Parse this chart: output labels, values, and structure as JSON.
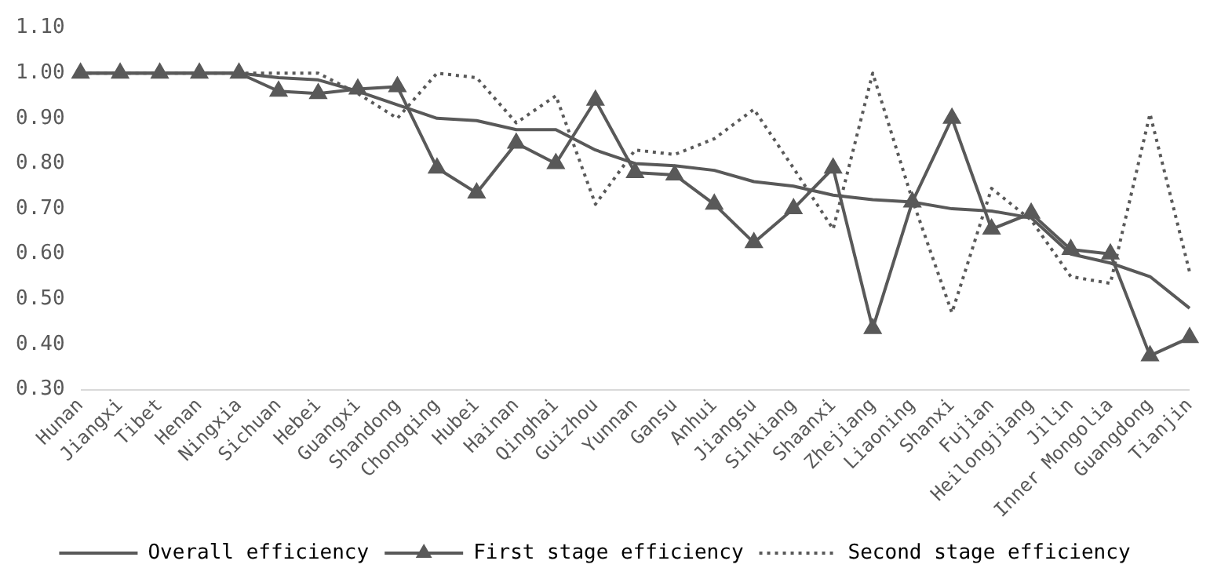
{
  "chart_data": {
    "type": "line",
    "categories": [
      "Hunan",
      "Jiangxi",
      "Tibet",
      "Henan",
      "Ningxia",
      "Sichuan",
      "Hebei",
      "Guangxi",
      "Shandong",
      "Chongqing",
      "Hubei",
      "Hainan",
      "Qinghai",
      "Guizhou",
      "Yunnan",
      "Gansu",
      "Anhui",
      "Jiangsu",
      "Sinkiang",
      "Shaanxi",
      "Zhejiang",
      "Liaoning",
      "Shanxi",
      "Fujian",
      "Heilongjiang",
      "Jilin",
      "Inner Mongolia",
      "Guangdong",
      "Tianjin"
    ],
    "series": [
      {
        "name": "Overall efficiency",
        "color": "#595959",
        "marker": "none",
        "line_style": "solid",
        "values": [
          1,
          1,
          1,
          1,
          1,
          0.99,
          0.985,
          0.96,
          0.93,
          0.9,
          0.895,
          0.875,
          0.875,
          0.83,
          0.8,
          0.795,
          0.785,
          0.76,
          0.75,
          0.73,
          0.72,
          0.715,
          0.7,
          0.695,
          0.68,
          0.6,
          0.58,
          0.55,
          0.48
        ]
      },
      {
        "name": "First stage efficiency",
        "color": "#595959",
        "marker": "triangle",
        "line_style": "solid",
        "values": [
          1,
          1,
          1,
          1,
          1,
          0.96,
          0.955,
          0.965,
          0.97,
          0.79,
          0.735,
          0.845,
          0.8,
          0.94,
          0.78,
          0.775,
          0.71,
          0.625,
          0.7,
          0.79,
          0.435,
          0.715,
          0.9,
          0.655,
          0.69,
          0.61,
          0.6,
          0.375,
          0.415
        ]
      },
      {
        "name": "Second stage efficiency",
        "color": "#595959",
        "marker": "none",
        "line_style": "dotted",
        "values": [
          1,
          1,
          1,
          1,
          1,
          1,
          1,
          0.955,
          0.9,
          1,
          0.99,
          0.89,
          0.95,
          0.71,
          0.83,
          0.82,
          0.855,
          0.92,
          0.79,
          0.655,
          1,
          0.72,
          0.47,
          0.745,
          0.675,
          0.55,
          0.535,
          0.91,
          0.56
        ]
      }
    ],
    "ylim": [
      0.3,
      1.1
    ],
    "yticks": [
      {
        "value": 0.3,
        "label": "0.30"
      },
      {
        "value": 0.4,
        "label": "0.40"
      },
      {
        "value": 0.5,
        "label": "0.50"
      },
      {
        "value": 0.6,
        "label": "0.60"
      },
      {
        "value": 0.7,
        "label": "0.70"
      },
      {
        "value": 0.8,
        "label": "0.80"
      },
      {
        "value": 0.9,
        "label": "0.90"
      },
      {
        "value": 1.0,
        "label": "1.00"
      },
      {
        "value": 1.1,
        "label": "1.10"
      }
    ],
    "grid": false,
    "legend": "bottom"
  }
}
